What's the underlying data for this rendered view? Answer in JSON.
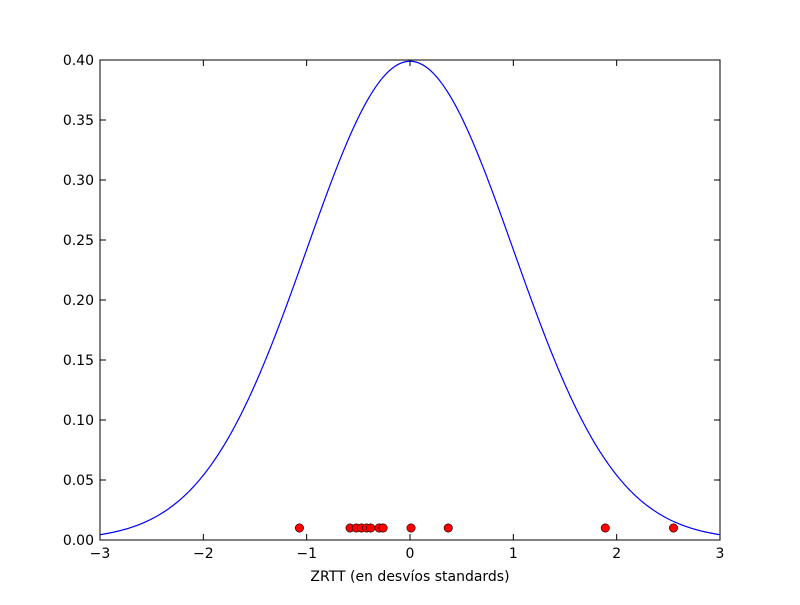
{
  "chart_data": {
    "type": "line",
    "xlabel": "ZRTT (en desvíos standards)",
    "ylabel": "",
    "title": "",
    "xlim": [
      -3,
      3
    ],
    "ylim": [
      0,
      0.4
    ],
    "x_ticks": [
      -3,
      -2,
      -1,
      0,
      1,
      2,
      3
    ],
    "x_tick_labels": [
      "−3",
      "−2",
      "−1",
      "0",
      "1",
      "2",
      "3"
    ],
    "y_ticks": [
      0.0,
      0.05,
      0.1,
      0.15,
      0.2,
      0.25,
      0.3,
      0.35,
      0.4
    ],
    "y_tick_labels": [
      "0.00",
      "0.05",
      "0.10",
      "0.15",
      "0.20",
      "0.25",
      "0.30",
      "0.35",
      "0.40"
    ],
    "grid": false,
    "series": [
      {
        "kind": "line",
        "color": "#0000ff",
        "function": "standard-normal-pdf"
      },
      {
        "kind": "scatter",
        "color": "#ff0000",
        "points": [
          {
            "x": -1.07,
            "y": 0.01
          },
          {
            "x": -0.58,
            "y": 0.01
          },
          {
            "x": -0.52,
            "y": 0.01
          },
          {
            "x": -0.47,
            "y": 0.01
          },
          {
            "x": -0.42,
            "y": 0.01
          },
          {
            "x": -0.38,
            "y": 0.01
          },
          {
            "x": -0.3,
            "y": 0.01
          },
          {
            "x": -0.26,
            "y": 0.01
          },
          {
            "x": 0.01,
            "y": 0.01
          },
          {
            "x": 0.37,
            "y": 0.01
          },
          {
            "x": 1.89,
            "y": 0.01
          },
          {
            "x": 2.55,
            "y": 0.01
          }
        ]
      }
    ]
  }
}
